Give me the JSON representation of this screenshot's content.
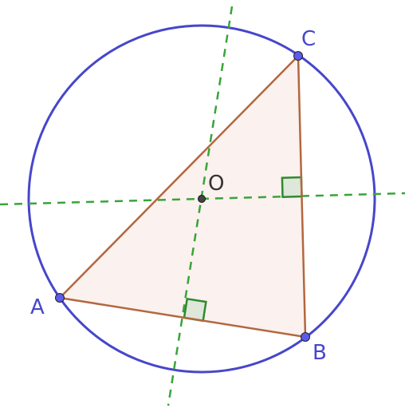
{
  "points": [
    {
      "label": "A"
    },
    {
      "label": "B"
    },
    {
      "label": "C"
    },
    {
      "label": "O"
    }
  ]
}
